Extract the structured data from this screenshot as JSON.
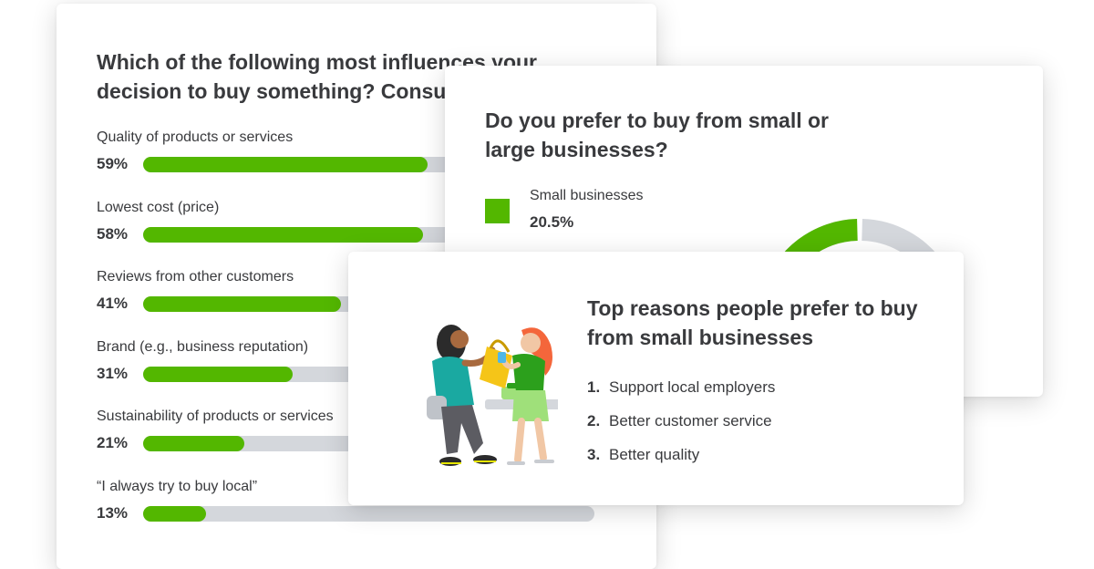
{
  "influences": {
    "title": "Which of the following most influences your decision to buy something? Consumers",
    "title_lines": [
      "Which of the following most influences your",
      "decision to buy something? Consumers"
    ]
  },
  "size_pref": {
    "title": "Do you prefer to buy from small or large businesses?",
    "legend_label": "Small businesses",
    "legend_value": "20.5%"
  },
  "reasons": {
    "title": "Top reasons people prefer to buy from small businesses",
    "items": [
      {
        "num": "1.",
        "text": "Support local employers"
      },
      {
        "num": "2.",
        "text": "Better customer service"
      },
      {
        "num": "3.",
        "text": "Better quality"
      }
    ]
  },
  "colors": {
    "green": "#53b700",
    "track": "#d4d7dc",
    "dark_gray": "#8d9096",
    "light_gray": "#d4d7dc",
    "text": "#393a3d"
  },
  "chart_data": [
    {
      "type": "bar",
      "orientation": "horizontal",
      "title": "Which of the following most influences your decision to buy something? Consumers",
      "categories": [
        "Quality of products or services",
        "Lowest cost (price)",
        "Reviews from other customers",
        "Brand (e.g., business reputation)",
        "Sustainability of products or services",
        "“I always try to buy local”"
      ],
      "values": [
        59,
        58,
        41,
        31,
        21,
        13
      ],
      "value_labels": [
        "59%",
        "58%",
        "41%",
        "31%",
        "21%",
        "13%"
      ],
      "xlim": [
        0,
        100
      ],
      "grid": false
    },
    {
      "type": "pie",
      "style": "donut",
      "title": "Do you prefer to buy from small or large businesses?",
      "labels": [
        "Small businesses"
      ],
      "values": [
        20.5
      ],
      "value_labels": [
        "20.5%"
      ],
      "legend": "left"
    }
  ]
}
